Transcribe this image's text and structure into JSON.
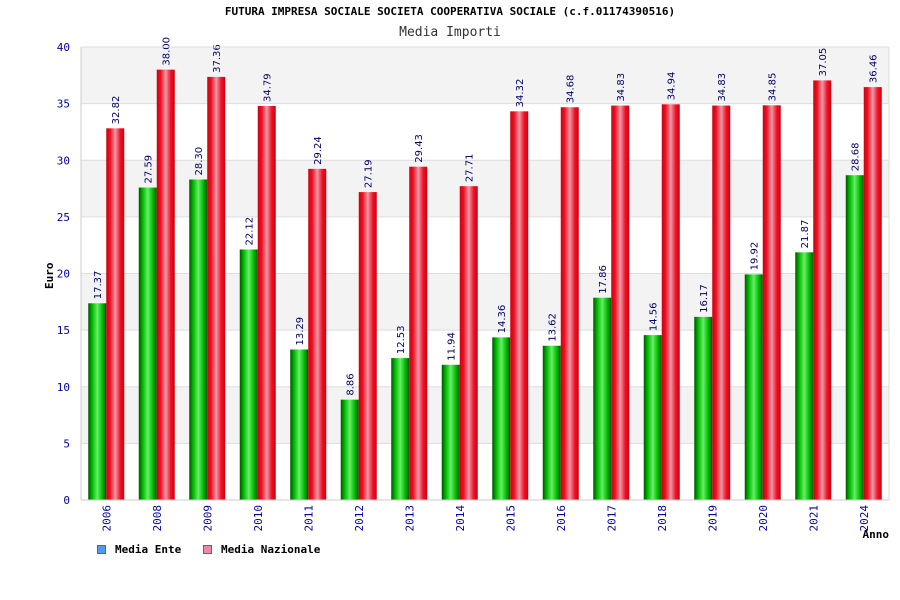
{
  "chart_data": {
    "type": "bar",
    "title": "FUTURA IMPRESA SOCIALE SOCIETA COOPERATIVA SOCIALE (c.f.01174390516)",
    "subtitle": "Media Importi",
    "xlabel": "Anno",
    "ylabel": "Euro",
    "ylim": [
      0,
      40
    ],
    "yticks": [
      "0",
      "5",
      "10",
      "15",
      "20",
      "25",
      "30",
      "35",
      "40"
    ],
    "grid": true,
    "legend_position": "bottom-left",
    "categories": [
      "2006",
      "2008",
      "2009",
      "2010",
      "2011",
      "2012",
      "2013",
      "2014",
      "2015",
      "2016",
      "2017",
      "2018",
      "2019",
      "2020",
      "2021",
      "2024"
    ],
    "series": [
      {
        "name": "Media Ente",
        "color": "#00aa00",
        "legend_color": "#5599ee",
        "values": [
          17.37,
          27.59,
          28.3,
          22.12,
          13.29,
          8.86,
          12.53,
          11.94,
          14.36,
          13.62,
          17.86,
          14.56,
          16.17,
          19.92,
          21.87,
          28.68
        ],
        "labels": [
          "17.37",
          "27.59",
          "28.30",
          "22.12",
          "13.29",
          "8.86",
          "12.53",
          "11.94",
          "14.36",
          "13.62",
          "17.86",
          "14.56",
          "16.17",
          "19.92",
          "21.87",
          "28.68"
        ]
      },
      {
        "name": "Media Nazionale",
        "color": "#ee0011",
        "legend_color": "#ee88aa",
        "values": [
          32.82,
          38.0,
          37.36,
          34.79,
          29.24,
          27.19,
          29.43,
          27.71,
          34.32,
          34.68,
          34.83,
          34.94,
          34.83,
          34.85,
          37.05,
          36.46
        ],
        "labels": [
          "32.82",
          "38.00",
          "37.36",
          "34.79",
          "29.24",
          "27.19",
          "29.43",
          "27.71",
          "34.32",
          "34.68",
          "34.83",
          "34.94",
          "34.83",
          "34.85",
          "37.05",
          "36.46"
        ]
      }
    ]
  }
}
